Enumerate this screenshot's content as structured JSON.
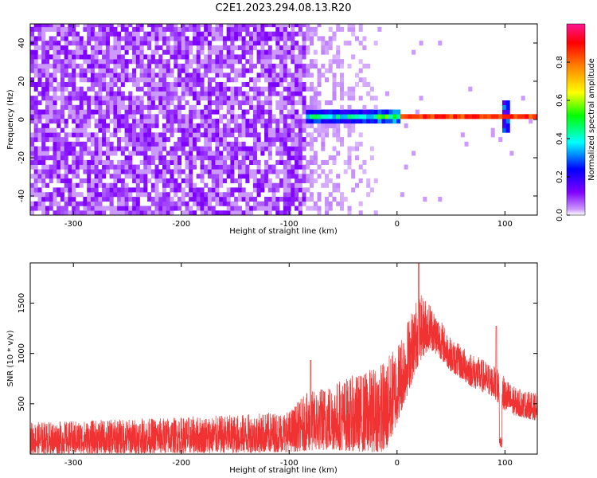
{
  "title": "C2E1.2023.294.08.13.R20",
  "chart_data": [
    {
      "type": "heatmap",
      "xlabel": "Height of straight line (km)",
      "ylabel": "Frequency (Hz)",
      "xlim": [
        -340,
        130
      ],
      "ylim": [
        -50,
        50
      ],
      "xticks": [
        -300,
        -200,
        -100,
        0,
        100
      ],
      "yticks": [
        -40,
        -20,
        0,
        20,
        40
      ],
      "colorbar": {
        "label": "Normalized spectral amplitude",
        "range": [
          0,
          1
        ],
        "ticks": [
          0.0,
          0.2,
          0.4,
          0.6,
          0.8
        ],
        "colormap": [
          "#ffffff",
          "#cc99ff",
          "#7f00ff",
          "#0000ff",
          "#00ffff",
          "#00ff00",
          "#ffff00",
          "#ff8000",
          "#ff0000",
          "#ff1493"
        ]
      },
      "features": {
        "noise_region_x": [
          -340,
          -85
        ],
        "noise_amplitude": 0.12,
        "fading_region_x": [
          -85,
          -20
        ],
        "signal_line_y": 1.5,
        "signal_onset_x": -85,
        "signal_amplitude_peak": 1.0,
        "disturbance_x": [
          95,
          102
        ]
      }
    },
    {
      "type": "line",
      "xlabel": "Height of straight line (km)",
      "ylabel": "SNR (10 * v/v)",
      "xlim": [
        -340,
        130
      ],
      "ylim": [
        0,
        1900
      ],
      "xticks": [
        -300,
        -200,
        -100,
        0,
        100
      ],
      "yticks": [
        500,
        1000,
        1500
      ],
      "series": [
        {
          "color": "#f03232",
          "envelope": [
            {
              "x": -340,
              "lo": 5,
              "hi": 320
            },
            {
              "x": -300,
              "lo": 5,
              "hi": 330
            },
            {
              "x": -250,
              "lo": 5,
              "hi": 350
            },
            {
              "x": -200,
              "lo": 10,
              "hi": 370
            },
            {
              "x": -150,
              "lo": 10,
              "hi": 390
            },
            {
              "x": -100,
              "lo": 20,
              "hi": 430
            },
            {
              "x": -85,
              "lo": 30,
              "hi": 600
            },
            {
              "x": -60,
              "lo": 40,
              "hi": 720
            },
            {
              "x": -30,
              "lo": 20,
              "hi": 820
            },
            {
              "x": -10,
              "lo": 20,
              "hi": 950
            },
            {
              "x": 0,
              "lo": 300,
              "hi": 1100
            },
            {
              "x": 10,
              "lo": 600,
              "hi": 1350
            },
            {
              "x": 20,
              "lo": 900,
              "hi": 1600
            },
            {
              "x": 30,
              "lo": 1050,
              "hi": 1520
            },
            {
              "x": 40,
              "lo": 950,
              "hi": 1350
            },
            {
              "x": 50,
              "lo": 820,
              "hi": 1150
            },
            {
              "x": 70,
              "lo": 660,
              "hi": 1000
            },
            {
              "x": 90,
              "lo": 560,
              "hi": 880
            },
            {
              "x": 100,
              "lo": 420,
              "hi": 760
            },
            {
              "x": 110,
              "lo": 380,
              "hi": 660
            },
            {
              "x": 130,
              "lo": 330,
              "hi": 600
            }
          ],
          "peaks": [
            {
              "x": 20,
              "y": 1900
            },
            {
              "x": -80,
              "y": 930
            },
            {
              "x": 92,
              "y": 1270
            }
          ],
          "dip": {
            "x": 96,
            "y": 60
          }
        }
      ]
    }
  ]
}
